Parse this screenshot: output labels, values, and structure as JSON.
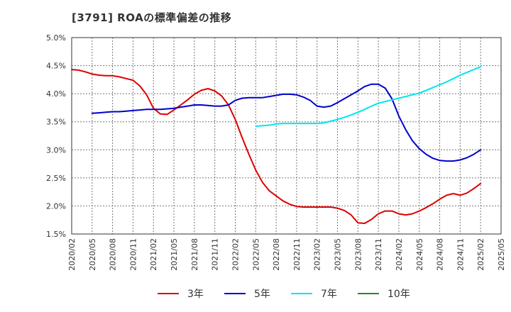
{
  "title": "[3791]  ROAの標準偏差の推移",
  "chart_data": {
    "type": "line",
    "title": "[3791]  ROAの標準偏差の推移",
    "xlabel": "",
    "ylabel": "",
    "ylim": [
      1.5,
      5.0
    ],
    "y_ticks": [
      "5.0%",
      "4.5%",
      "4.0%",
      "3.5%",
      "3.0%",
      "2.5%",
      "2.0%",
      "1.5%"
    ],
    "x_ticks": [
      "2020/02",
      "2020/05",
      "2020/08",
      "2020/11",
      "2021/02",
      "2021/05",
      "2021/08",
      "2021/11",
      "2022/02",
      "2022/05",
      "2022/08",
      "2022/11",
      "2023/02",
      "2023/05",
      "2023/08",
      "2023/11",
      "2024/02",
      "2024/05",
      "2024/08",
      "2024/11",
      "2025/02",
      "2025/05"
    ],
    "x_range": [
      "2020/02",
      "2025/05"
    ],
    "grid": true,
    "legend_position": "bottom",
    "series": [
      {
        "name": "3年",
        "color": "#dd0000",
        "points": [
          [
            "2020/02",
            4.43
          ],
          [
            "2020/03",
            4.42
          ],
          [
            "2020/04",
            4.39
          ],
          [
            "2020/05",
            4.35
          ],
          [
            "2020/06",
            4.33
          ],
          [
            "2020/07",
            4.32
          ],
          [
            "2020/08",
            4.32
          ],
          [
            "2020/09",
            4.3
          ],
          [
            "2020/10",
            4.27
          ],
          [
            "2020/11",
            4.24
          ],
          [
            "2020/12",
            4.14
          ],
          [
            "2021/01",
            3.98
          ],
          [
            "2021/02",
            3.74
          ],
          [
            "2021/03",
            3.64
          ],
          [
            "2021/04",
            3.63
          ],
          [
            "2021/05",
            3.71
          ],
          [
            "2021/06",
            3.8
          ],
          [
            "2021/07",
            3.89
          ],
          [
            "2021/08",
            3.99
          ],
          [
            "2021/09",
            4.06
          ],
          [
            "2021/10",
            4.09
          ],
          [
            "2021/11",
            4.05
          ],
          [
            "2021/12",
            3.96
          ],
          [
            "2022/01",
            3.8
          ],
          [
            "2022/02",
            3.54
          ],
          [
            "2022/03",
            3.22
          ],
          [
            "2022/04",
            2.92
          ],
          [
            "2022/05",
            2.64
          ],
          [
            "2022/06",
            2.42
          ],
          [
            "2022/07",
            2.27
          ],
          [
            "2022/08",
            2.18
          ],
          [
            "2022/09",
            2.09
          ],
          [
            "2022/10",
            2.03
          ],
          [
            "2022/11",
            1.99
          ],
          [
            "2022/12",
            1.98
          ],
          [
            "2023/01",
            1.98
          ],
          [
            "2023/02",
            1.98
          ],
          [
            "2023/03",
            1.98
          ],
          [
            "2023/04",
            1.98
          ],
          [
            "2023/05",
            1.96
          ],
          [
            "2023/06",
            1.92
          ],
          [
            "2023/07",
            1.84
          ],
          [
            "2023/08",
            1.7
          ],
          [
            "2023/09",
            1.69
          ],
          [
            "2023/10",
            1.76
          ],
          [
            "2023/11",
            1.86
          ],
          [
            "2023/12",
            1.91
          ],
          [
            "2024/01",
            1.91
          ],
          [
            "2024/02",
            1.86
          ],
          [
            "2024/03",
            1.84
          ],
          [
            "2024/04",
            1.86
          ],
          [
            "2024/05",
            1.91
          ],
          [
            "2024/06",
            1.97
          ],
          [
            "2024/07",
            2.04
          ],
          [
            "2024/08",
            2.12
          ],
          [
            "2024/09",
            2.19
          ],
          [
            "2024/10",
            2.22
          ],
          [
            "2024/11",
            2.19
          ],
          [
            "2024/12",
            2.23
          ],
          [
            "2025/01",
            2.31
          ],
          [
            "2025/02",
            2.4
          ]
        ]
      },
      {
        "name": "5年",
        "color": "#0000cc",
        "points": [
          [
            "2020/05",
            3.65
          ],
          [
            "2020/06",
            3.66
          ],
          [
            "2020/07",
            3.67
          ],
          [
            "2020/08",
            3.68
          ],
          [
            "2020/09",
            3.68
          ],
          [
            "2020/10",
            3.69
          ],
          [
            "2020/11",
            3.7
          ],
          [
            "2020/12",
            3.71
          ],
          [
            "2021/01",
            3.72
          ],
          [
            "2021/02",
            3.72
          ],
          [
            "2021/03",
            3.72
          ],
          [
            "2021/04",
            3.73
          ],
          [
            "2021/05",
            3.74
          ],
          [
            "2021/06",
            3.76
          ],
          [
            "2021/07",
            3.78
          ],
          [
            "2021/08",
            3.8
          ],
          [
            "2021/09",
            3.8
          ],
          [
            "2021/10",
            3.79
          ],
          [
            "2021/11",
            3.78
          ],
          [
            "2021/12",
            3.78
          ],
          [
            "2022/01",
            3.8
          ],
          [
            "2022/02",
            3.88
          ],
          [
            "2022/03",
            3.92
          ],
          [
            "2022/04",
            3.93
          ],
          [
            "2022/05",
            3.93
          ],
          [
            "2022/06",
            3.93
          ],
          [
            "2022/07",
            3.95
          ],
          [
            "2022/08",
            3.97
          ],
          [
            "2022/09",
            3.99
          ],
          [
            "2022/10",
            3.99
          ],
          [
            "2022/11",
            3.98
          ],
          [
            "2022/12",
            3.94
          ],
          [
            "2023/01",
            3.88
          ],
          [
            "2023/02",
            3.78
          ],
          [
            "2023/03",
            3.76
          ],
          [
            "2023/04",
            3.78
          ],
          [
            "2023/05",
            3.84
          ],
          [
            "2023/06",
            3.91
          ],
          [
            "2023/07",
            3.98
          ],
          [
            "2023/08",
            4.05
          ],
          [
            "2023/09",
            4.13
          ],
          [
            "2023/10",
            4.17
          ],
          [
            "2023/11",
            4.17
          ],
          [
            "2023/12",
            4.1
          ],
          [
            "2024/01",
            3.91
          ],
          [
            "2024/02",
            3.6
          ],
          [
            "2024/03",
            3.36
          ],
          [
            "2024/04",
            3.16
          ],
          [
            "2024/05",
            3.02
          ],
          [
            "2024/06",
            2.92
          ],
          [
            "2024/07",
            2.85
          ],
          [
            "2024/08",
            2.81
          ],
          [
            "2024/09",
            2.8
          ],
          [
            "2024/10",
            2.8
          ],
          [
            "2024/11",
            2.82
          ],
          [
            "2024/12",
            2.86
          ],
          [
            "2025/01",
            2.92
          ],
          [
            "2025/02",
            3.0
          ]
        ]
      },
      {
        "name": "7年",
        "color": "#00e5ee",
        "points": [
          [
            "2022/05",
            3.42
          ],
          [
            "2022/06",
            3.43
          ],
          [
            "2022/07",
            3.44
          ],
          [
            "2022/08",
            3.46
          ],
          [
            "2022/09",
            3.47
          ],
          [
            "2022/10",
            3.47
          ],
          [
            "2022/11",
            3.47
          ],
          [
            "2022/12",
            3.47
          ],
          [
            "2023/01",
            3.47
          ],
          [
            "2023/02",
            3.47
          ],
          [
            "2023/03",
            3.48
          ],
          [
            "2023/04",
            3.51
          ],
          [
            "2023/05",
            3.54
          ],
          [
            "2023/06",
            3.58
          ],
          [
            "2023/07",
            3.62
          ],
          [
            "2023/08",
            3.67
          ],
          [
            "2023/09",
            3.72
          ],
          [
            "2023/10",
            3.78
          ],
          [
            "2023/11",
            3.83
          ],
          [
            "2023/12",
            3.86
          ],
          [
            "2024/01",
            3.89
          ],
          [
            "2024/02",
            3.92
          ],
          [
            "2024/03",
            3.95
          ],
          [
            "2024/04",
            3.98
          ],
          [
            "2024/05",
            4.01
          ],
          [
            "2024/06",
            4.06
          ],
          [
            "2024/07",
            4.11
          ],
          [
            "2024/08",
            4.16
          ],
          [
            "2024/09",
            4.21
          ],
          [
            "2024/10",
            4.27
          ],
          [
            "2024/11",
            4.33
          ],
          [
            "2024/12",
            4.38
          ],
          [
            "2025/01",
            4.43
          ],
          [
            "2025/02",
            4.48
          ]
        ]
      },
      {
        "name": "10年",
        "color": "#228b22",
        "points": []
      }
    ]
  }
}
